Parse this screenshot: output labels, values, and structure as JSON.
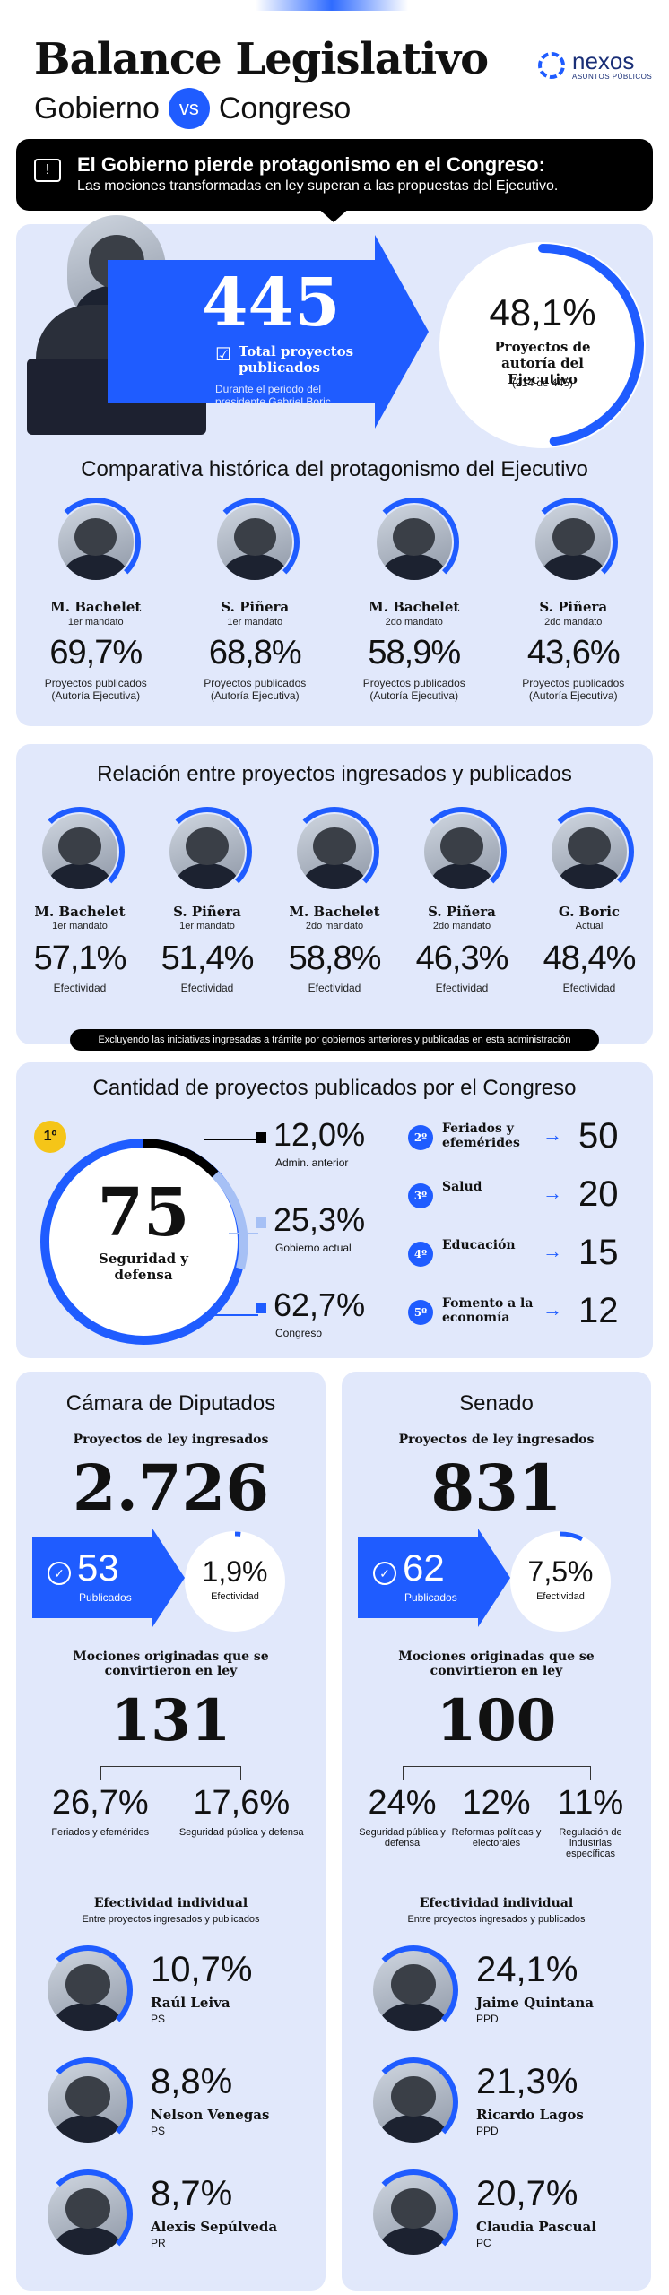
{
  "header": {
    "title": "Balance Legislativo",
    "subtitle_left": "Gobierno",
    "vs": "vs",
    "subtitle_right": "Congreso",
    "logo_name": "nexos",
    "logo_sub": "ASUNTOS PÚBLICOS"
  },
  "banner": {
    "headline": "El Gobierno pierde protagonismo en el Congreso:",
    "text": "Las mociones transformadas en ley superan a las propuestas del Ejecutivo."
  },
  "summary": {
    "total": "445",
    "total_label": "Total proyectos publicados",
    "total_note": "Durante el periodo del presidente Gabriel Boric",
    "pct": "48,1%",
    "pct_value": 48.1,
    "pct_label": "Proyectos de autoría del Ejecutivo",
    "pct_note": "(214 de 445)"
  },
  "historic": {
    "title": "Comparativa histórica del protagonismo del Ejecutivo",
    "items": [
      {
        "name": "M. Bachelet",
        "term": "1er mandato",
        "pct": "69,7%",
        "value": 69.7,
        "label": "Proyectos publicados (Autoría Ejecutiva)"
      },
      {
        "name": "S. Piñera",
        "term": "1er mandato",
        "pct": "68,8%",
        "value": 68.8,
        "label": "Proyectos publicados (Autoría Ejecutiva)"
      },
      {
        "name": "M. Bachelet",
        "term": "2do mandato",
        "pct": "58,9%",
        "value": 58.9,
        "label": "Proyectos publicados (Autoría Ejecutiva)"
      },
      {
        "name": "S. Piñera",
        "term": "2do mandato",
        "pct": "43,6%",
        "value": 43.6,
        "label": "Proyectos publicados (Autoría Ejecutiva)"
      }
    ]
  },
  "relation": {
    "title": "Relación entre proyectos ingresados y publicados",
    "items": [
      {
        "name": "M. Bachelet",
        "term": "1er mandato",
        "pct": "57,1%",
        "value": 57.1,
        "label": "Efectividad"
      },
      {
        "name": "S. Piñera",
        "term": "1er mandato",
        "pct": "51,4%",
        "value": 51.4,
        "label": "Efectividad"
      },
      {
        "name": "M. Bachelet",
        "term": "2do mandato",
        "pct": "58,8%",
        "value": 58.8,
        "label": "Efectividad"
      },
      {
        "name": "S. Piñera",
        "term": "2do mandato",
        "pct": "46,3%",
        "value": 46.3,
        "label": "Efectividad"
      },
      {
        "name": "G. Boric",
        "term": "Actual",
        "pct": "48,4%",
        "value": 48.4,
        "label": "Efectividad"
      }
    ],
    "note": "Excluyendo las iniciativas ingresadas a trámite por gobiernos anteriores y publicadas en esta administración"
  },
  "congress": {
    "title": "Cantidad de proyectos publicados por el Congreso",
    "first_rank": "1º",
    "first_value": "75",
    "first_label": "Seguridad y defensa",
    "breakdown": [
      {
        "pct": "12,0%",
        "label": "Admin. anterior"
      },
      {
        "pct": "25,3%",
        "label": "Gobierno actual"
      },
      {
        "pct": "62,7%",
        "label": "Congreso"
      }
    ],
    "ranking": [
      {
        "rank": "2º",
        "label": "Feriados y efemérides",
        "value": "50"
      },
      {
        "rank": "3º",
        "label": "Salud",
        "value": "20"
      },
      {
        "rank": "4º",
        "label": "Educación",
        "value": "15"
      },
      {
        "rank": "5º",
        "label": "Fomento a la economía",
        "value": "12"
      }
    ]
  },
  "camara": {
    "title": "Cámara de Diputados",
    "ingresados_label": "Proyectos de ley ingresados",
    "ingresados": "2.726",
    "publicados": "53",
    "publicados_label": "Publicados",
    "efectividad": "1,9%",
    "efectividad_label": "Efectividad",
    "mociones_label": "Mociones originadas que se convirtieron en ley",
    "mociones": "131",
    "topics": [
      {
        "pct": "26,7%",
        "label": "Feriados y efemérides"
      },
      {
        "pct": "17,6%",
        "label": "Seguridad pública y defensa"
      }
    ],
    "indiv_title": "Efectividad individual",
    "indiv_sub": "Entre proyectos ingresados y publicados",
    "people": [
      {
        "pct": "10,7%",
        "name": "Raúl Leiva",
        "party": "PS"
      },
      {
        "pct": "8,8%",
        "name": "Nelson Venegas",
        "party": "PS"
      },
      {
        "pct": "8,7%",
        "name": "Alexis Sepúlveda",
        "party": "PR"
      }
    ]
  },
  "senado": {
    "title": "Senado",
    "ingresados_label": "Proyectos de ley ingresados",
    "ingresados": "831",
    "publicados": "62",
    "publicados_label": "Publicados",
    "efectividad": "7,5%",
    "efectividad_label": "Efectividad",
    "mociones_label": "Mociones originadas que se convirtieron en ley",
    "mociones": "100",
    "topics": [
      {
        "pct": "24%",
        "label": "Seguridad pública y defensa"
      },
      {
        "pct": "12%",
        "label": "Reformas políticas y electorales"
      },
      {
        "pct": "11%",
        "label": "Regulación de industrias específicas"
      }
    ],
    "indiv_title": "Efectividad individual",
    "indiv_sub": "Entre proyectos ingresados y publicados",
    "people": [
      {
        "pct": "24,1%",
        "name": "Jaime Quintana",
        "party": "PPD"
      },
      {
        "pct": "21,3%",
        "name": "Ricardo Lagos",
        "party": "PPD"
      },
      {
        "pct": "20,7%",
        "name": "Claudia Pascual",
        "party": "PC"
      }
    ]
  },
  "colors": {
    "accent": "#1f5cff",
    "panel": "#e1e8fb",
    "banner": "#000000"
  }
}
